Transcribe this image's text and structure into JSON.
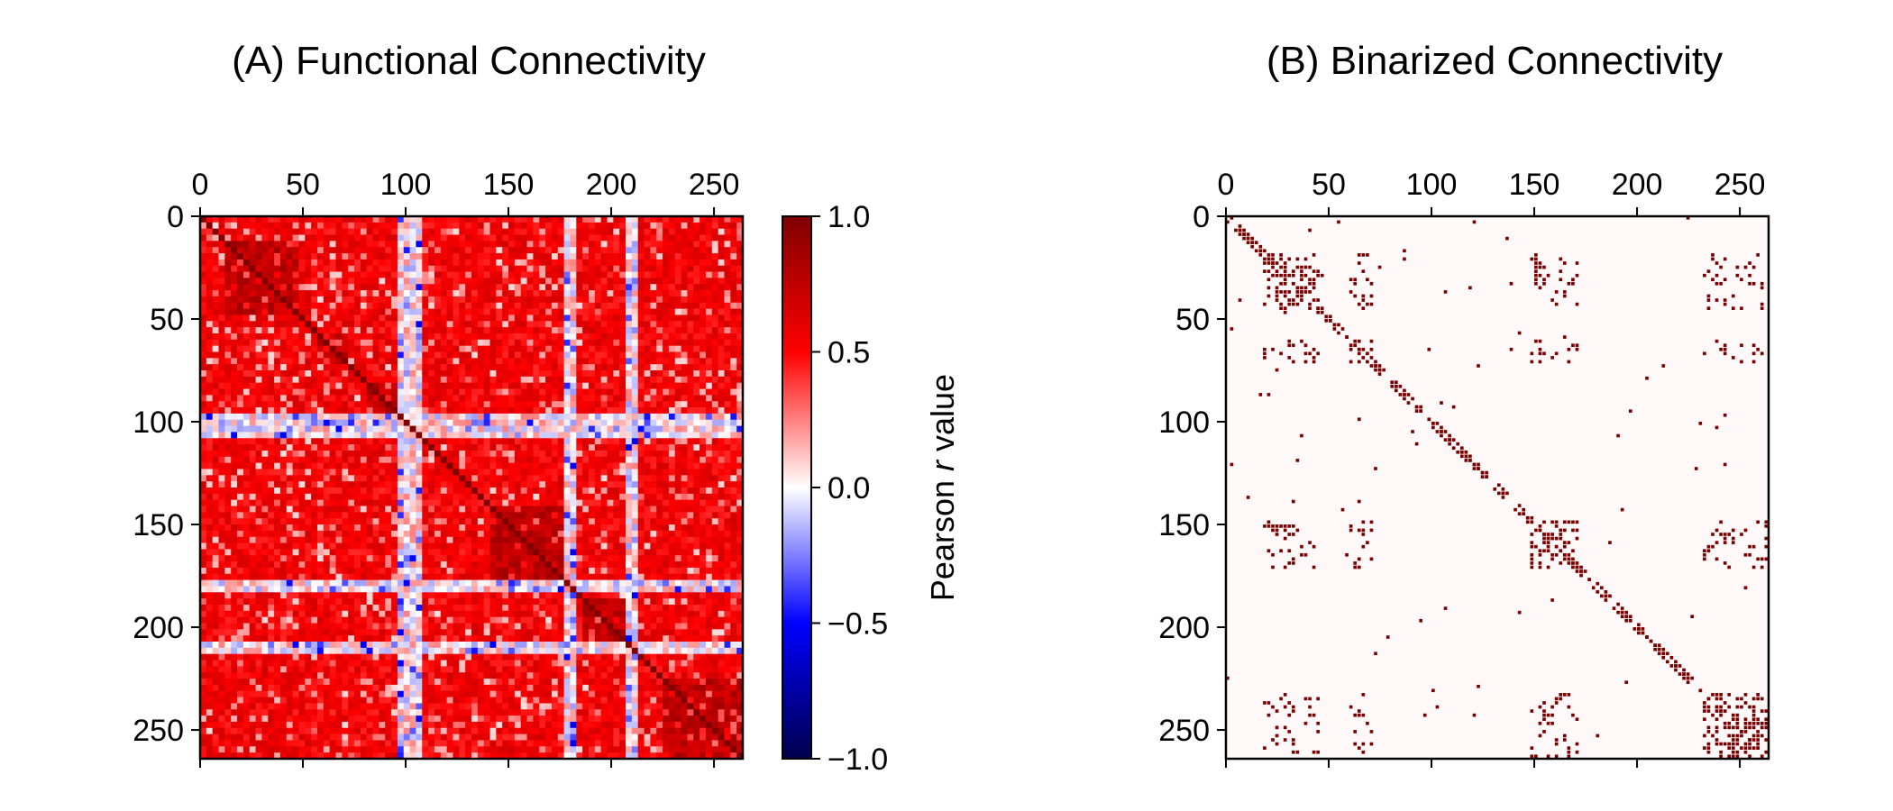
{
  "chart_data": [
    {
      "type": "heatmap",
      "title": "(A) Functional Connectivity",
      "xticks": [
        "0",
        "50",
        "100",
        "150",
        "200",
        "250"
      ],
      "yticks": [
        "0",
        "50",
        "100",
        "150",
        "200",
        "250"
      ],
      "tick_values": [
        0,
        50,
        100,
        150,
        200,
        250
      ],
      "matrix_size": 264,
      "colormap": "seismic",
      "value_range": [
        -1.0,
        1.0
      ],
      "colorbar": {
        "label_prefix": "Pearson ",
        "label_italic": "r",
        "label_suffix": " value",
        "ticks": [
          "1.0",
          "0.5",
          "0.0",
          "−0.5",
          "−1.0"
        ],
        "tick_values": [
          1.0,
          0.5,
          0.0,
          -0.5,
          -1.0
        ]
      },
      "community_blocks": [
        [
          12,
          45
        ],
        [
          55,
          70
        ],
        [
          80,
          100
        ],
        [
          140,
          175
        ],
        [
          185,
          205
        ],
        [
          225,
          262
        ]
      ],
      "weak_bands": [
        [
          95,
          105
        ],
        [
          176,
          182
        ],
        [
          205,
          210
        ]
      ]
    },
    {
      "type": "heatmap",
      "title": "(B) Binarized Connectivity",
      "xticks": [
        "0",
        "50",
        "100",
        "150",
        "200",
        "250"
      ],
      "yticks": [
        "0",
        "50",
        "100",
        "150",
        "200",
        "250"
      ],
      "tick_values": [
        0,
        50,
        100,
        150,
        200,
        250
      ],
      "matrix_size": 264,
      "colormap": "binary-darkred",
      "value_range": [
        0,
        1
      ],
      "dense_blocks": [
        [
          18,
          44
        ],
        [
          60,
          70
        ],
        [
          148,
          170
        ],
        [
          155,
          168
        ],
        [
          232,
          262
        ]
      ]
    }
  ]
}
